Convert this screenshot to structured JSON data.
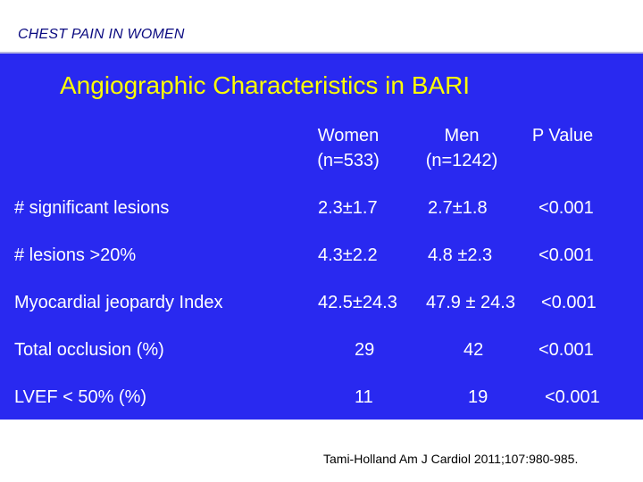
{
  "header": {
    "title": "CHEST PAIN IN WOMEN"
  },
  "slide": {
    "title": "Angiographic Characteristics in BARI"
  },
  "table": {
    "columns": [
      {
        "name": "Women",
        "sub": "(n=533)"
      },
      {
        "name": "Men",
        "sub": "(n=1242)"
      },
      {
        "name": "P Value",
        "sub": ""
      }
    ],
    "rows": [
      {
        "label": "# significant lesions",
        "women": "2.3±1.7",
        "men": "2.7±1.8",
        "p": "<0.001"
      },
      {
        "label": "# lesions >20%",
        "women": "4.3±2.2",
        "men": "4.8 ±2.3",
        "p": "<0.001"
      },
      {
        "label": "Myocardial jeopardy Index",
        "women": "42.5±24.3",
        "men": "47.9 ± 24.3",
        "p": "<0.001"
      },
      {
        "label": "Total occlusion (%)",
        "women": "29",
        "men": "42",
        "p": "<0.001"
      },
      {
        "label": "LVEF < 50% (%)",
        "women": "11",
        "men": "19",
        "p": "<0.001"
      }
    ]
  },
  "footer": {
    "citation": "Tami-Holland Am J Cardiol 2011;107:980-985."
  },
  "colors": {
    "background": "#2929f0",
    "title": "#ffff00",
    "text": "#ffffff",
    "header_text": "#0a0a80"
  }
}
